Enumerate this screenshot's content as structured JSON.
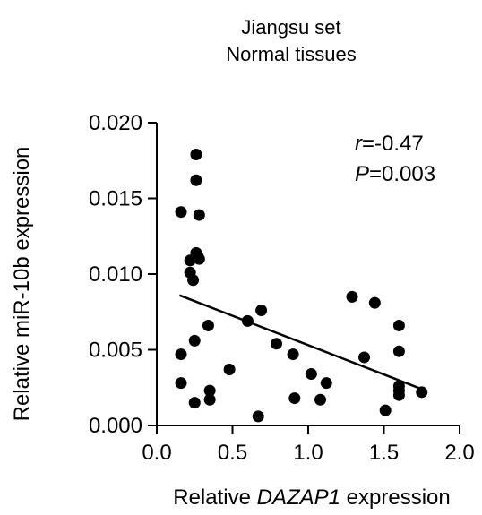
{
  "chart_data": {
    "type": "scatter",
    "title": [
      "Jiangsu set",
      "Normal tissues"
    ],
    "xlabel": {
      "prefix": "Relative ",
      "italic": "DAZAP1",
      "suffix": " expression"
    },
    "ylabel": "Relative miR-10b expression",
    "xlim": [
      0,
      2
    ],
    "ylim": [
      0,
      0.02
    ],
    "x_ticks": [
      "0.0",
      "0.5",
      "1.0",
      "1.5",
      "2.0"
    ],
    "y_ticks": [
      "0.000",
      "0.005",
      "0.010",
      "0.015",
      "0.020"
    ],
    "annotation": {
      "r_label": "r",
      "r_value": "=-0.47",
      "p_label": "P",
      "p_value": "=0.003"
    },
    "points": [
      {
        "x": 0.16,
        "y": 0.0141
      },
      {
        "x": 0.16,
        "y": 0.0047
      },
      {
        "x": 0.16,
        "y": 0.0028
      },
      {
        "x": 0.22,
        "y": 0.0109
      },
      {
        "x": 0.22,
        "y": 0.0101
      },
      {
        "x": 0.24,
        "y": 0.0096
      },
      {
        "x": 0.25,
        "y": 0.0056
      },
      {
        "x": 0.25,
        "y": 0.0015
      },
      {
        "x": 0.26,
        "y": 0.0179
      },
      {
        "x": 0.26,
        "y": 0.0162
      },
      {
        "x": 0.26,
        "y": 0.0114
      },
      {
        "x": 0.27,
        "y": 0.0112
      },
      {
        "x": 0.28,
        "y": 0.011
      },
      {
        "x": 0.28,
        "y": 0.0139
      },
      {
        "x": 0.34,
        "y": 0.0066
      },
      {
        "x": 0.35,
        "y": 0.0023
      },
      {
        "x": 0.35,
        "y": 0.0017
      },
      {
        "x": 0.48,
        "y": 0.0037
      },
      {
        "x": 0.6,
        "y": 0.0069
      },
      {
        "x": 0.67,
        "y": 0.0006
      },
      {
        "x": 0.69,
        "y": 0.0076
      },
      {
        "x": 0.79,
        "y": 0.0054
      },
      {
        "x": 0.9,
        "y": 0.0047
      },
      {
        "x": 0.91,
        "y": 0.0018
      },
      {
        "x": 1.02,
        "y": 0.0034
      },
      {
        "x": 1.08,
        "y": 0.0017
      },
      {
        "x": 1.12,
        "y": 0.0028
      },
      {
        "x": 1.29,
        "y": 0.0085
      },
      {
        "x": 1.37,
        "y": 0.0045
      },
      {
        "x": 1.44,
        "y": 0.0081
      },
      {
        "x": 1.51,
        "y": 0.001
      },
      {
        "x": 1.6,
        "y": 0.0066
      },
      {
        "x": 1.6,
        "y": 0.0049
      },
      {
        "x": 1.6,
        "y": 0.0026
      },
      {
        "x": 1.6,
        "y": 0.002
      },
      {
        "x": 1.6,
        "y": 0.0023
      },
      {
        "x": 1.75,
        "y": 0.0022
      }
    ],
    "regression": {
      "x1": 0.15,
      "y1": 0.0086,
      "x2": 1.75,
      "y2": 0.0024
    },
    "grid": false,
    "legend": "none",
    "colors": {
      "point": "#000000",
      "line": "#000000",
      "axis": "#000000",
      "text": "#000000"
    }
  }
}
